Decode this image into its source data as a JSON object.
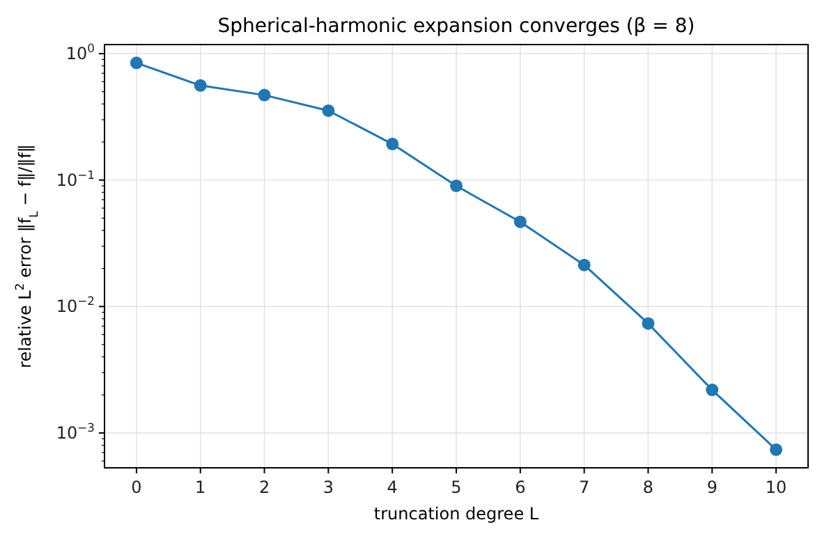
{
  "chart_data": {
    "type": "line",
    "title": "Spherical-harmonic expansion converges (β = 8)",
    "xlabel": "truncation degree L",
    "ylabel": "relative L$^{2}$ error  ‖f$_{L}$ − f‖/‖f‖",
    "x": [
      0,
      1,
      2,
      3,
      4,
      5,
      6,
      7,
      8,
      9,
      10
    ],
    "series": [
      {
        "color": "#1f77b4",
        "values": [
          0.845,
          0.56,
          0.47,
          0.354,
          0.193,
          0.09,
          0.0467,
          0.0213,
          0.00734,
          0.00219,
          0.000738
        ]
      }
    ],
    "log": "y",
    "xlim": [
      -0.5,
      10.5
    ],
    "ylim": [
      0.00053,
      1.18
    ],
    "xticks": [
      0,
      1,
      2,
      3,
      4,
      5,
      6,
      7,
      8,
      9,
      10
    ],
    "yticks": [
      {
        "value": 0.001,
        "label": "10$^{−3}$"
      },
      {
        "value": 0.01,
        "label": "10$^{−2}$"
      },
      {
        "value": 0.1,
        "label": "10$^{−1}$"
      },
      {
        "value": 1,
        "label": "10$^{0}$"
      },
      {
        "value": 0.0006,
        "label": null
      },
      {
        "value": 0.0007,
        "label": null
      },
      {
        "value": 0.0008,
        "label": null
      },
      {
        "value": 0.0009,
        "label": null
      },
      {
        "value": 0.002,
        "label": null
      },
      {
        "value": 0.003,
        "label": null
      },
      {
        "value": 0.004,
        "label": null
      },
      {
        "value": 0.005,
        "label": null
      },
      {
        "value": 0.006,
        "label": null
      },
      {
        "value": 0.007,
        "label": null
      },
      {
        "value": 0.008,
        "label": null
      },
      {
        "value": 0.009,
        "label": null
      },
      {
        "value": 0.02,
        "label": null
      },
      {
        "value": 0.03,
        "label": null
      },
      {
        "value": 0.04,
        "label": null
      },
      {
        "value": 0.05,
        "label": null
      },
      {
        "value": 0.06,
        "label": null
      },
      {
        "value": 0.07,
        "label": null
      },
      {
        "value": 0.08,
        "label": null
      },
      {
        "value": 0.09,
        "label": null
      },
      {
        "value": 0.2,
        "label": null
      },
      {
        "value": 0.3,
        "label": null
      },
      {
        "value": 0.4,
        "label": null
      },
      {
        "value": 0.5,
        "label": null
      },
      {
        "value": 0.6,
        "label": null
      },
      {
        "value": 0.7,
        "label": null
      },
      {
        "value": 0.8,
        "label": null
      },
      {
        "value": 0.9,
        "label": null
      }
    ],
    "grid": true,
    "marker": "circle",
    "line_style": "solid"
  }
}
